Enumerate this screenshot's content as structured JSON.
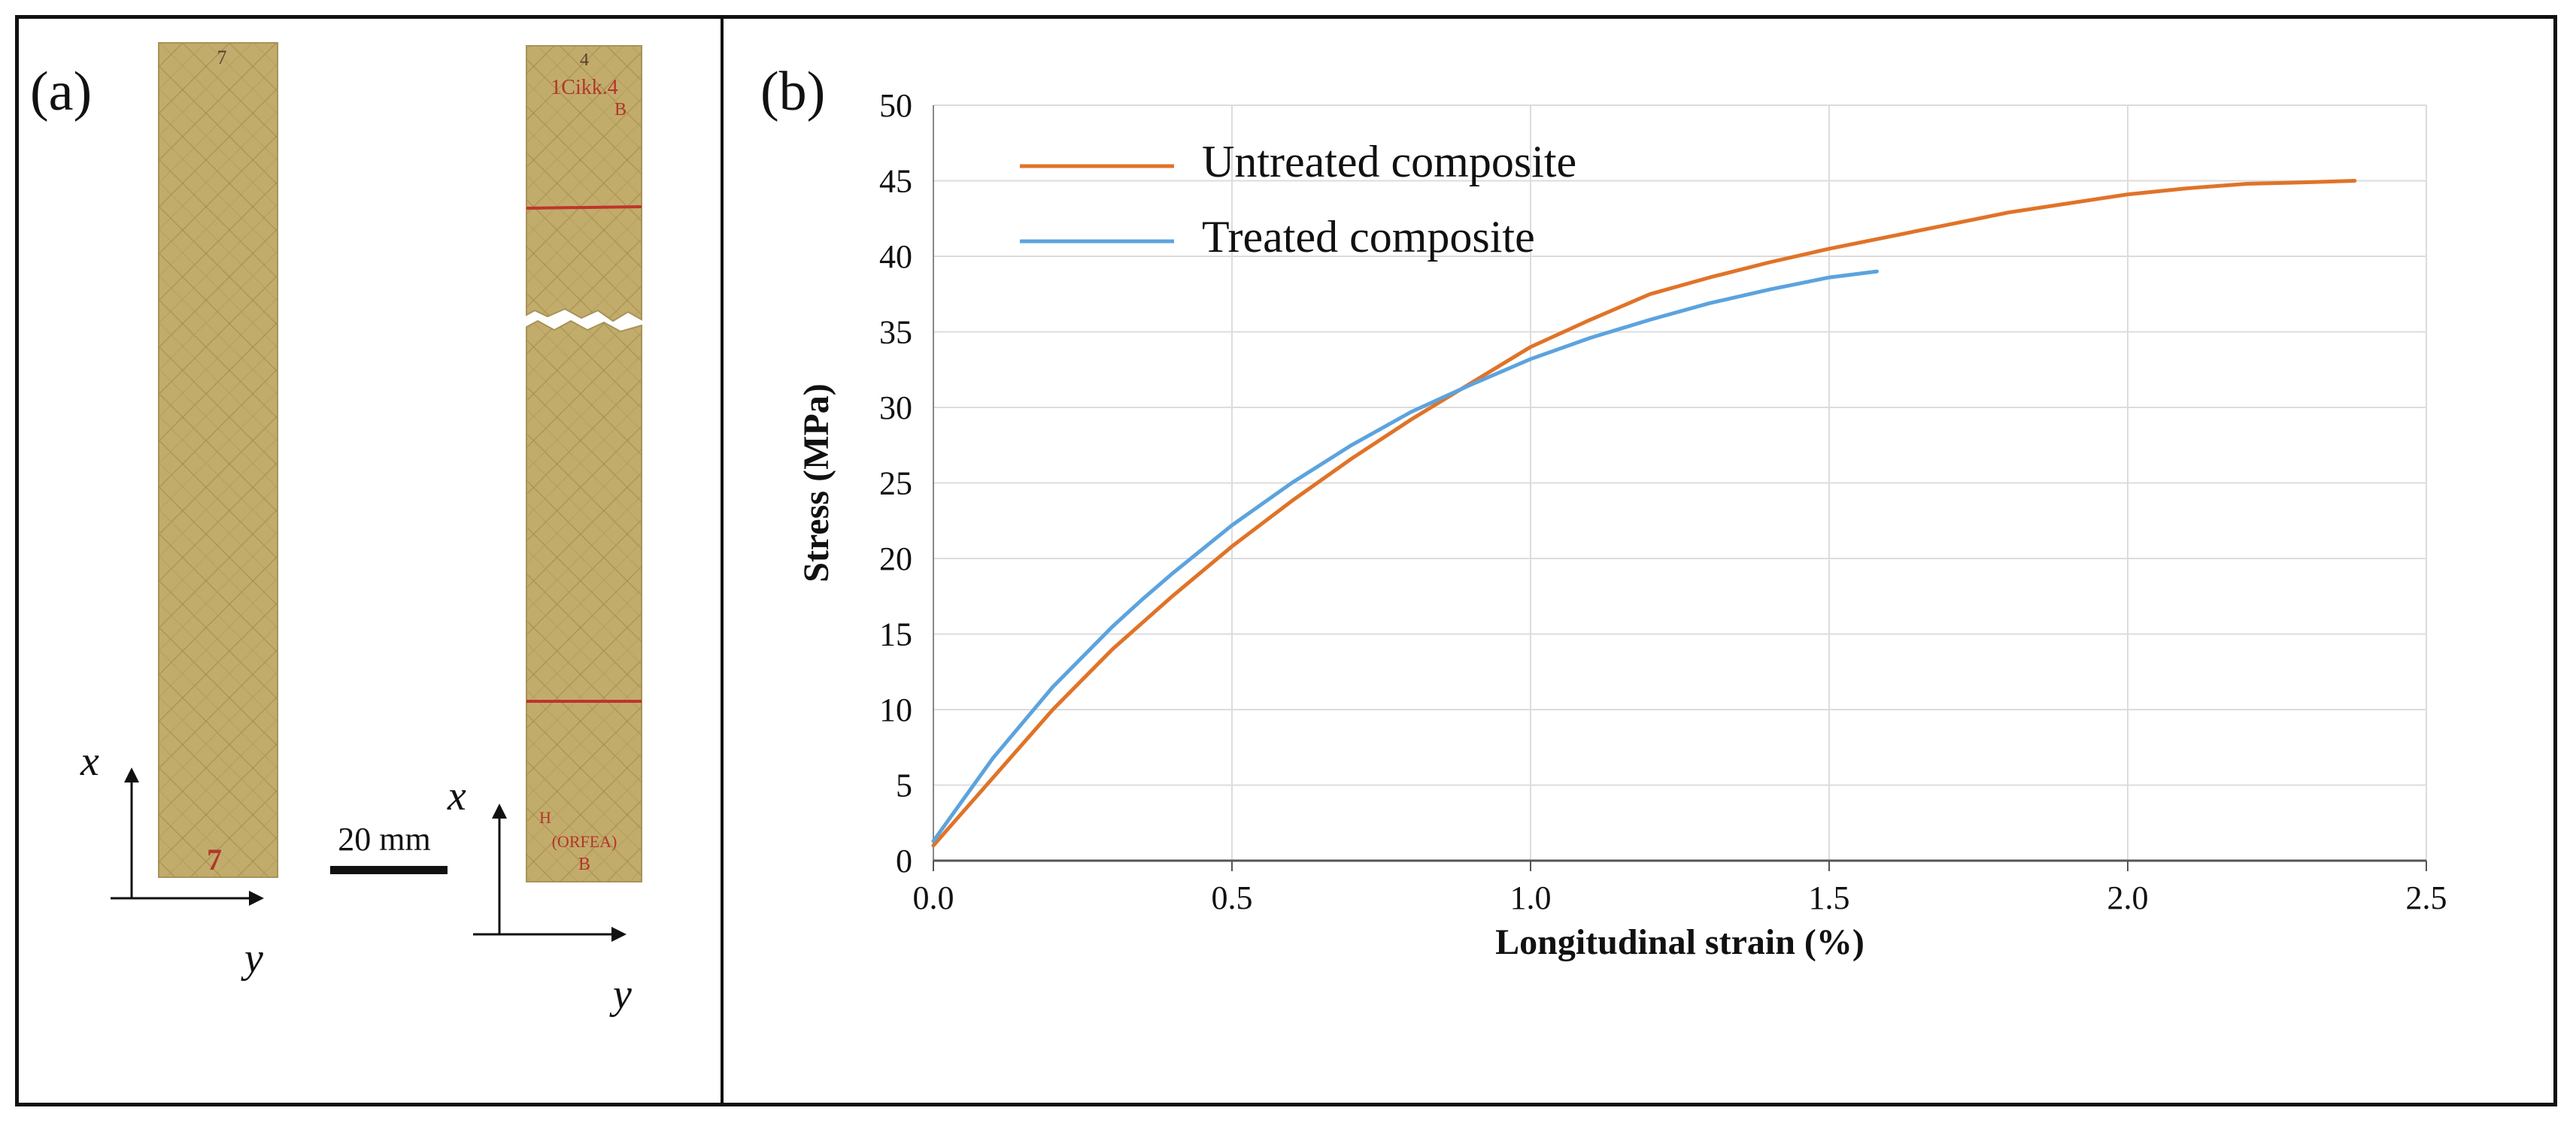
{
  "panel_a": {
    "label": "(a)",
    "scale_bar_label": "20 mm",
    "axis_x_label": "x⃗",
    "axis_y_label": "y⃗",
    "specimen_left_marks": [
      "7",
      "7"
    ],
    "specimen_right_marks": [
      "4",
      "1Cikk.4",
      "B",
      "H",
      "(ORFEA)",
      "B"
    ]
  },
  "panel_b": {
    "label": "(b)"
  },
  "chart_data": {
    "type": "line",
    "xlabel": "Longitudinal strain (%)",
    "ylabel": "Stress (MPa)",
    "xlim": [
      0,
      2.5
    ],
    "ylim": [
      0,
      50
    ],
    "x_ticks": [
      "0.0",
      "0.5",
      "1.0",
      "1.5",
      "2.0",
      "2.5"
    ],
    "y_ticks": [
      "0",
      "5",
      "10",
      "15",
      "20",
      "25",
      "30",
      "35",
      "40",
      "45",
      "50"
    ],
    "grid": true,
    "legend_position": "top-left",
    "series": [
      {
        "name": "Untreated composite",
        "color": "#E07328",
        "x": [
          0.0,
          0.1,
          0.2,
          0.3,
          0.4,
          0.5,
          0.6,
          0.7,
          0.8,
          0.9,
          1.0,
          1.1,
          1.2,
          1.3,
          1.4,
          1.5,
          1.6,
          1.7,
          1.8,
          1.9,
          2.0,
          2.1,
          2.2,
          2.3,
          2.38
        ],
        "y": [
          1.0,
          5.5,
          10.0,
          14.0,
          17.5,
          20.8,
          23.8,
          26.6,
          29.2,
          31.6,
          34.0,
          35.8,
          37.5,
          38.6,
          39.6,
          40.5,
          41.3,
          42.1,
          42.9,
          43.5,
          44.1,
          44.5,
          44.8,
          44.9,
          45.0
        ]
      },
      {
        "name": "Treated composite",
        "color": "#5CA3DE",
        "x": [
          0.0,
          0.1,
          0.2,
          0.3,
          0.35,
          0.4,
          0.5,
          0.6,
          0.7,
          0.8,
          0.9,
          1.0,
          1.1,
          1.2,
          1.3,
          1.4,
          1.5,
          1.58
        ],
        "y": [
          1.3,
          6.8,
          11.5,
          15.5,
          17.3,
          19.0,
          22.2,
          25.0,
          27.5,
          29.7,
          31.5,
          33.2,
          34.6,
          35.8,
          36.9,
          37.8,
          38.6,
          39.0
        ]
      }
    ]
  }
}
